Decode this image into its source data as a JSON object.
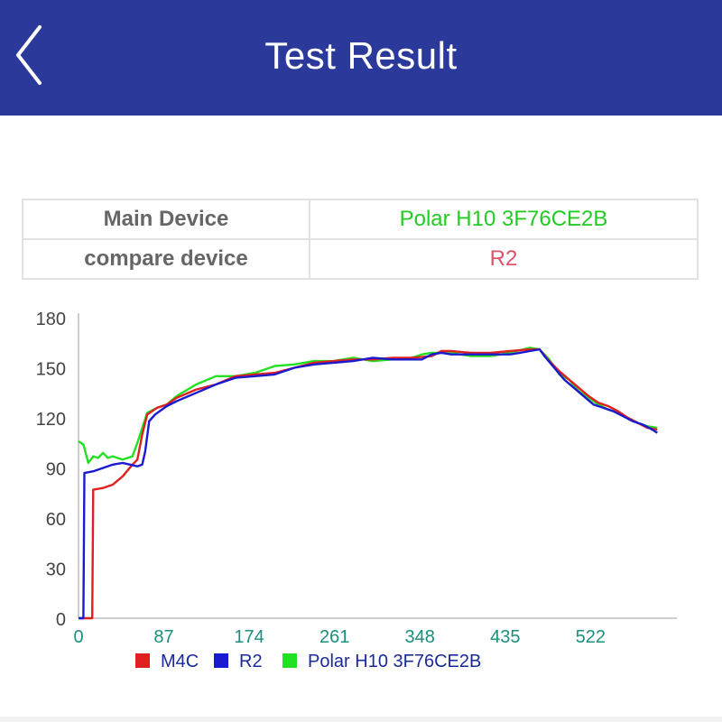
{
  "header": {
    "title": "Test Result",
    "back_icon": "chevron-left-icon"
  },
  "devices": {
    "main_label": "Main Device",
    "main_value": "Polar H10 3F76CE2B",
    "compare_label": "compare device",
    "compare_value": "R2"
  },
  "chart_data": {
    "type": "line",
    "xlim": [
      0,
      610
    ],
    "ylim": [
      0,
      180
    ],
    "x_ticks": [
      "0",
      "87",
      "174",
      "261",
      "348",
      "435",
      "522"
    ],
    "y_ticks": [
      "0",
      "30",
      "60",
      "90",
      "120",
      "150",
      "180"
    ],
    "legend_position": "bottom",
    "series": [
      {
        "name": "M4C",
        "color": "#e02020",
        "points": [
          [
            0,
            0
          ],
          [
            14,
            0
          ],
          [
            15,
            77
          ],
          [
            25,
            78
          ],
          [
            35,
            80
          ],
          [
            45,
            85
          ],
          [
            55,
            92
          ],
          [
            60,
            95
          ],
          [
            65,
            110
          ],
          [
            70,
            122
          ],
          [
            80,
            126
          ],
          [
            90,
            128
          ],
          [
            100,
            132
          ],
          [
            120,
            137
          ],
          [
            140,
            140
          ],
          [
            160,
            145
          ],
          [
            180,
            146
          ],
          [
            200,
            147
          ],
          [
            220,
            150
          ],
          [
            240,
            153
          ],
          [
            260,
            154
          ],
          [
            280,
            155
          ],
          [
            300,
            155
          ],
          [
            320,
            156
          ],
          [
            340,
            156
          ],
          [
            360,
            157
          ],
          [
            370,
            160
          ],
          [
            380,
            160
          ],
          [
            400,
            159
          ],
          [
            420,
            159
          ],
          [
            440,
            160
          ],
          [
            460,
            161
          ],
          [
            470,
            161
          ],
          [
            480,
            154
          ],
          [
            490,
            148
          ],
          [
            500,
            143
          ],
          [
            510,
            138
          ],
          [
            520,
            133
          ],
          [
            530,
            129
          ],
          [
            540,
            127
          ],
          [
            550,
            124
          ],
          [
            560,
            120
          ],
          [
            570,
            117
          ],
          [
            580,
            114
          ],
          [
            590,
            113
          ]
        ]
      },
      {
        "name": "R2",
        "color": "#1a1ad0",
        "points": [
          [
            0,
            0
          ],
          [
            5,
            0
          ],
          [
            6,
            87
          ],
          [
            15,
            88
          ],
          [
            25,
            90
          ],
          [
            35,
            92
          ],
          [
            45,
            93
          ],
          [
            60,
            91
          ],
          [
            65,
            92
          ],
          [
            68,
            100
          ],
          [
            72,
            118
          ],
          [
            78,
            122
          ],
          [
            90,
            127
          ],
          [
            100,
            130
          ],
          [
            120,
            135
          ],
          [
            140,
            140
          ],
          [
            160,
            144
          ],
          [
            180,
            145
          ],
          [
            200,
            146
          ],
          [
            220,
            150
          ],
          [
            240,
            152
          ],
          [
            260,
            153
          ],
          [
            280,
            154
          ],
          [
            300,
            156
          ],
          [
            320,
            155
          ],
          [
            340,
            155
          ],
          [
            350,
            155
          ],
          [
            360,
            158
          ],
          [
            370,
            159
          ],
          [
            380,
            158
          ],
          [
            400,
            158
          ],
          [
            420,
            158
          ],
          [
            440,
            158
          ],
          [
            450,
            159
          ],
          [
            460,
            160
          ],
          [
            470,
            161
          ],
          [
            475,
            157
          ],
          [
            485,
            150
          ],
          [
            495,
            143
          ],
          [
            505,
            138
          ],
          [
            515,
            133
          ],
          [
            525,
            128
          ],
          [
            535,
            126
          ],
          [
            545,
            124
          ],
          [
            555,
            121
          ],
          [
            565,
            118
          ],
          [
            575,
            116
          ],
          [
            585,
            113
          ],
          [
            590,
            111
          ]
        ]
      },
      {
        "name": "Polar H10 3F76CE2B",
        "color": "#22e022",
        "points": [
          [
            0,
            106
          ],
          [
            5,
            104
          ],
          [
            10,
            93
          ],
          [
            15,
            97
          ],
          [
            20,
            96
          ],
          [
            25,
            99
          ],
          [
            30,
            96
          ],
          [
            35,
            97
          ],
          [
            45,
            95
          ],
          [
            55,
            97
          ],
          [
            60,
            105
          ],
          [
            65,
            114
          ],
          [
            70,
            123
          ],
          [
            80,
            126
          ],
          [
            90,
            128
          ],
          [
            100,
            133
          ],
          [
            120,
            140
          ],
          [
            140,
            145
          ],
          [
            160,
            145
          ],
          [
            180,
            147
          ],
          [
            200,
            151
          ],
          [
            220,
            152
          ],
          [
            240,
            154
          ],
          [
            260,
            154
          ],
          [
            280,
            156
          ],
          [
            300,
            154
          ],
          [
            320,
            155
          ],
          [
            340,
            156
          ],
          [
            350,
            158
          ],
          [
            360,
            159
          ],
          [
            370,
            159
          ],
          [
            380,
            159
          ],
          [
            400,
            157
          ],
          [
            420,
            157
          ],
          [
            440,
            159
          ],
          [
            460,
            162
          ],
          [
            470,
            161
          ],
          [
            480,
            155
          ],
          [
            490,
            146
          ],
          [
            500,
            143
          ],
          [
            510,
            136
          ],
          [
            520,
            132
          ],
          [
            530,
            128
          ],
          [
            540,
            125
          ],
          [
            550,
            123
          ],
          [
            560,
            120
          ],
          [
            570,
            117
          ],
          [
            580,
            115
          ],
          [
            590,
            114
          ]
        ]
      }
    ]
  }
}
